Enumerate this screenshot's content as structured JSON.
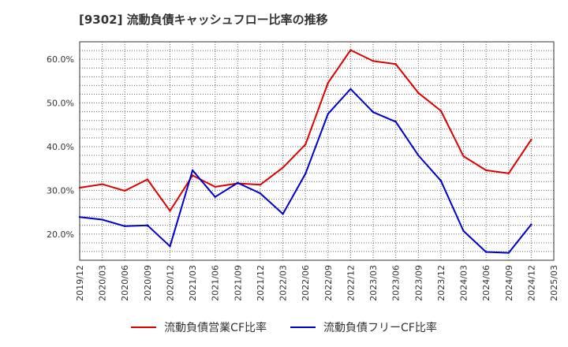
{
  "chart_data": {
    "type": "line",
    "title": "[9302]  流動負債キャッシュフロー比率の推移",
    "xlabel": "",
    "ylabel": "",
    "x": [
      "2019/12",
      "2020/03",
      "2020/06",
      "2020/09",
      "2020/12",
      "2021/03",
      "2021/06",
      "2021/09",
      "2021/12",
      "2022/03",
      "2022/06",
      "2022/09",
      "2022/12",
      "2023/03",
      "2023/06",
      "2023/09",
      "2023/12",
      "2024/03",
      "2024/06",
      "2024/09",
      "2024/12",
      "2025/03"
    ],
    "y_ticks": [
      "20.0%",
      "30.0%",
      "40.0%",
      "50.0%",
      "60.0%"
    ],
    "y_tick_values": [
      20,
      30,
      40,
      50,
      60
    ],
    "ylim": [
      14,
      64
    ],
    "grid": true,
    "legend_position": "bottom",
    "series": [
      {
        "name": "流動負債営業CF比率",
        "color": "#dd0000",
        "values": [
          30.6,
          31.4,
          29.9,
          32.5,
          25.3,
          33.4,
          30.8,
          31.6,
          31.3,
          35.2,
          40.5,
          54.6,
          62.1,
          59.6,
          58.9,
          52.3,
          48.2,
          37.8,
          34.6,
          33.9,
          41.6,
          null
        ]
      },
      {
        "name": "流動負債フリーCF比率",
        "color": "#0000cc",
        "values": [
          23.9,
          23.3,
          21.8,
          22.0,
          17.2,
          34.6,
          28.5,
          31.7,
          29.3,
          24.6,
          33.8,
          47.5,
          53.2,
          47.9,
          45.7,
          38.0,
          32.2,
          20.7,
          15.9,
          15.7,
          22.2,
          null
        ]
      }
    ]
  }
}
